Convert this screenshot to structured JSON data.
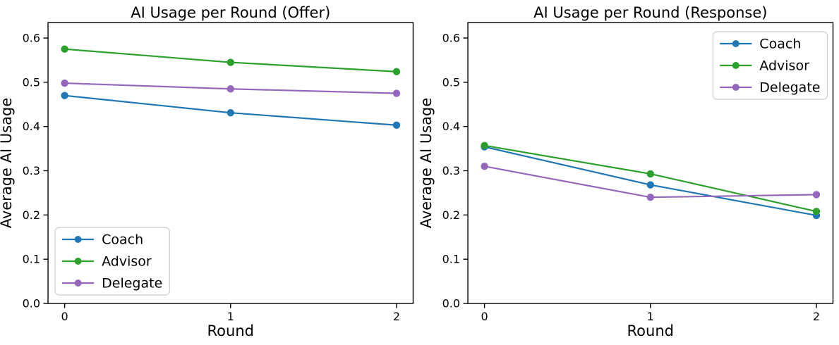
{
  "figure": {
    "background": "#ffffff",
    "text_color": "#000000",
    "spine_color": "#000000",
    "legend_border_color": "#cccccc"
  },
  "chart_data": [
    {
      "type": "line",
      "title": "AI Usage per Round (Offer)",
      "xlabel": "Round",
      "ylabel": "Average AI Usage",
      "x": [
        0,
        1,
        2
      ],
      "xtick_labels": [
        "0",
        "1",
        "2"
      ],
      "yticks": [
        0.0,
        0.1,
        0.2,
        0.3,
        0.4,
        0.5,
        0.6
      ],
      "xlim": [
        -0.1,
        2.1
      ],
      "ylim": [
        0,
        0.635
      ],
      "grid": false,
      "legend_position": "lower-left",
      "series": [
        {
          "name": "Coach",
          "color": "#1f77b4",
          "values": [
            0.47,
            0.431,
            0.403
          ]
        },
        {
          "name": "Advisor",
          "color": "#2ca02c",
          "values": [
            0.575,
            0.545,
            0.524
          ]
        },
        {
          "name": "Delegate",
          "color": "#9467bd",
          "values": [
            0.498,
            0.485,
            0.475
          ]
        }
      ]
    },
    {
      "type": "line",
      "title": "AI Usage per Round (Response)",
      "xlabel": "Round",
      "ylabel": "Average AI Usage",
      "x": [
        0,
        1,
        2
      ],
      "xtick_labels": [
        "0",
        "1",
        "2"
      ],
      "yticks": [
        0.0,
        0.1,
        0.2,
        0.3,
        0.4,
        0.5,
        0.6
      ],
      "xlim": [
        -0.1,
        2.1
      ],
      "ylim": [
        0,
        0.635
      ],
      "grid": false,
      "legend_position": "upper-right",
      "series": [
        {
          "name": "Coach",
          "color": "#1f77b4",
          "values": [
            0.354,
            0.268,
            0.199
          ]
        },
        {
          "name": "Advisor",
          "color": "#2ca02c",
          "values": [
            0.357,
            0.293,
            0.208
          ]
        },
        {
          "name": "Delegate",
          "color": "#9467bd",
          "values": [
            0.31,
            0.24,
            0.246
          ]
        }
      ]
    }
  ]
}
